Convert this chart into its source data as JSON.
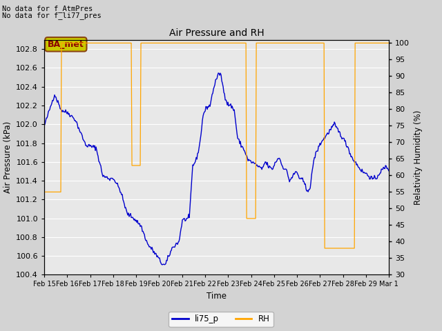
{
  "title": "Air Pressure and RH",
  "xlabel": "Time",
  "ylabel_left": "Air Pressure (kPa)",
  "ylabel_right": "Relativity Humidity (%)",
  "annotation_line1": "No data for f_AtmPres",
  "annotation_line2": "No data for f_li77_pres",
  "badge_text": "BA_met",
  "badge_facecolor": "#c8c800",
  "badge_edgecolor": "#8b4513",
  "badge_textcolor": "#8b0000",
  "ylim_left": [
    100.4,
    102.9
  ],
  "ylim_right": [
    30,
    101
  ],
  "yticks_left": [
    100.4,
    100.6,
    100.8,
    101.0,
    101.2,
    101.4,
    101.6,
    101.8,
    102.0,
    102.2,
    102.4,
    102.6,
    102.8
  ],
  "yticks_right": [
    30,
    35,
    40,
    45,
    50,
    55,
    60,
    65,
    70,
    75,
    80,
    85,
    90,
    95,
    100
  ],
  "line1_color": "#0000cc",
  "line2_color": "#ffa500",
  "line1_label": "li75_p",
  "line2_label": "RH",
  "bg_color": "#d3d3d3",
  "plot_bg_color": "#e8e8e8",
  "grid_color": "#ffffff",
  "xticklabels": [
    "Feb 15",
    "Feb 16",
    "Feb 17",
    "Feb 18",
    "Feb 19",
    "Feb 20",
    "Feb 21",
    "Feb 22",
    "Feb 23",
    "Feb 24",
    "Feb 25",
    "Feb 26",
    "Feb 27",
    "Feb 28",
    "Feb 29",
    "Mar 1"
  ]
}
